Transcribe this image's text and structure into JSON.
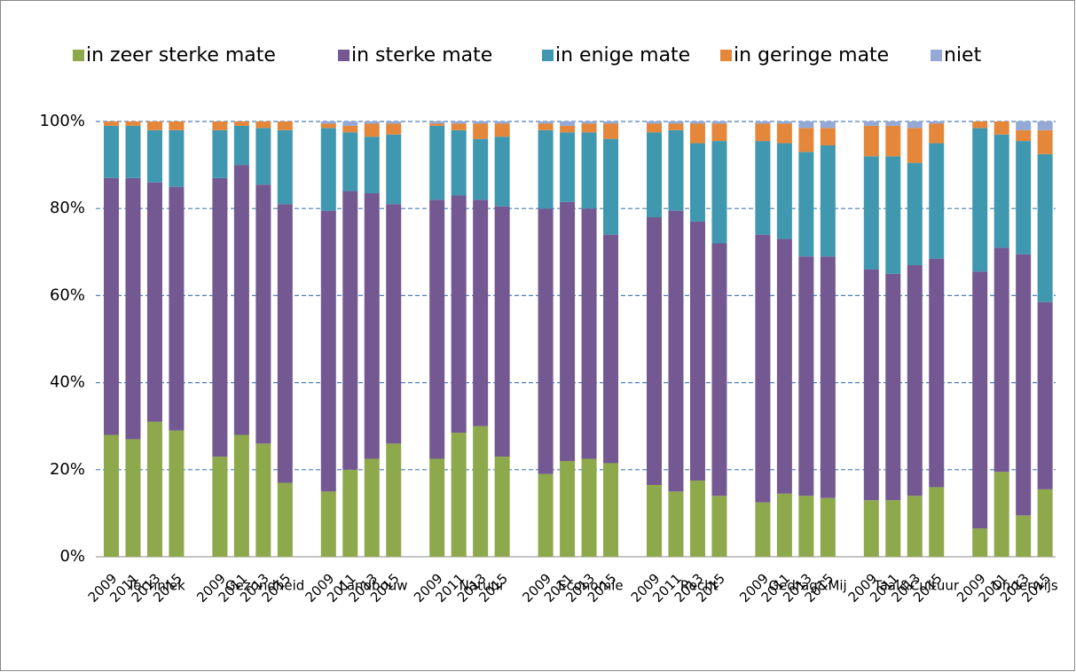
{
  "chart_data": {
    "type": "stacked_bar",
    "groups": [
      "Techniek",
      "Gezondheid",
      "Landbouw",
      "Natuur",
      "Economie",
      "Recht",
      "Gedrag&Mij",
      "Taal&Cultuur",
      "Onderwijs"
    ],
    "categories": [
      "2009",
      "2011",
      "2013",
      "2015",
      "2009",
      "2011",
      "2013",
      "2015",
      "2009",
      "2011",
      "2013",
      "2015",
      "2009",
      "2011",
      "2013",
      "2015",
      "2009",
      "2011",
      "2013",
      "2015",
      "2009",
      "2011",
      "2013",
      "2015",
      "2009",
      "2011",
      "2013",
      "2015",
      "2009",
      "2011",
      "2013",
      "2015",
      "2009",
      "2011",
      "2013",
      "2015"
    ],
    "series": [
      {
        "name": "in zeer sterke mate",
        "color": "#8ea84c",
        "values": [
          28,
          27,
          31,
          29,
          23,
          28,
          26,
          17,
          15,
          20,
          22.5,
          26,
          22.5,
          28.5,
          30,
          23,
          19,
          22,
          22.5,
          21.5,
          16.5,
          15,
          17.5,
          14,
          12.5,
          14.5,
          14,
          13.5,
          13,
          13,
          14,
          16,
          6.5,
          19.5,
          9.5,
          15.5
        ]
      },
      {
        "name": "in sterke mate",
        "color": "#735892",
        "values": [
          59,
          60,
          55,
          56,
          64,
          62,
          59.5,
          64,
          64.5,
          64,
          61,
          55,
          59.5,
          54.5,
          52,
          57.5,
          61,
          59.5,
          57.5,
          52.5,
          61.5,
          64.5,
          59.5,
          58,
          61.5,
          58.5,
          55,
          55.5,
          53,
          52,
          53,
          52.5,
          59,
          51.5,
          60,
          43
        ]
      },
      {
        "name": "in enige mate",
        "color": "#4097b0",
        "values": [
          12,
          12,
          12,
          13,
          11,
          9,
          13,
          17,
          19,
          13.5,
          13,
          16,
          17,
          15,
          14,
          16,
          18,
          16,
          17.5,
          22,
          19.5,
          18.5,
          18,
          23.5,
          21.5,
          22,
          24,
          25.5,
          26,
          27,
          23.5,
          26.5,
          33,
          26,
          26,
          34
        ]
      },
      {
        "name": "in geringe mate",
        "color": "#e5873a",
        "values": [
          1,
          1,
          2,
          2,
          2,
          1,
          1.5,
          2,
          1,
          1.5,
          3,
          2.5,
          0.5,
          1.5,
          3.5,
          3,
          1.5,
          1.5,
          2,
          3.5,
          2,
          1.5,
          4.5,
          4,
          4,
          4.5,
          5.5,
          4,
          7,
          7,
          8,
          4.5,
          1.5,
          3,
          2.5,
          5.5
        ]
      },
      {
        "name": "niet",
        "color": "#94a9d6",
        "values": [
          0,
          0,
          0,
          0,
          0,
          0,
          0,
          0,
          0.5,
          1,
          0.5,
          0.5,
          0.5,
          0.5,
          0.5,
          0.5,
          0.5,
          1,
          0.5,
          0.5,
          0.5,
          0.5,
          0.5,
          0.5,
          0.5,
          0.5,
          1.5,
          1.5,
          1,
          1,
          1.5,
          0.5,
          0,
          0,
          2,
          2
        ]
      }
    ],
    "ylim": [
      0,
      100
    ],
    "yticks": [
      {
        "value": 0,
        "label": "0%"
      },
      {
        "value": 20,
        "label": "20%"
      },
      {
        "value": 40,
        "label": "40%"
      },
      {
        "value": 60,
        "label": "60%"
      },
      {
        "value": 80,
        "label": "80%"
      },
      {
        "value": 100,
        "label": "100%"
      }
    ],
    "grid": true
  }
}
